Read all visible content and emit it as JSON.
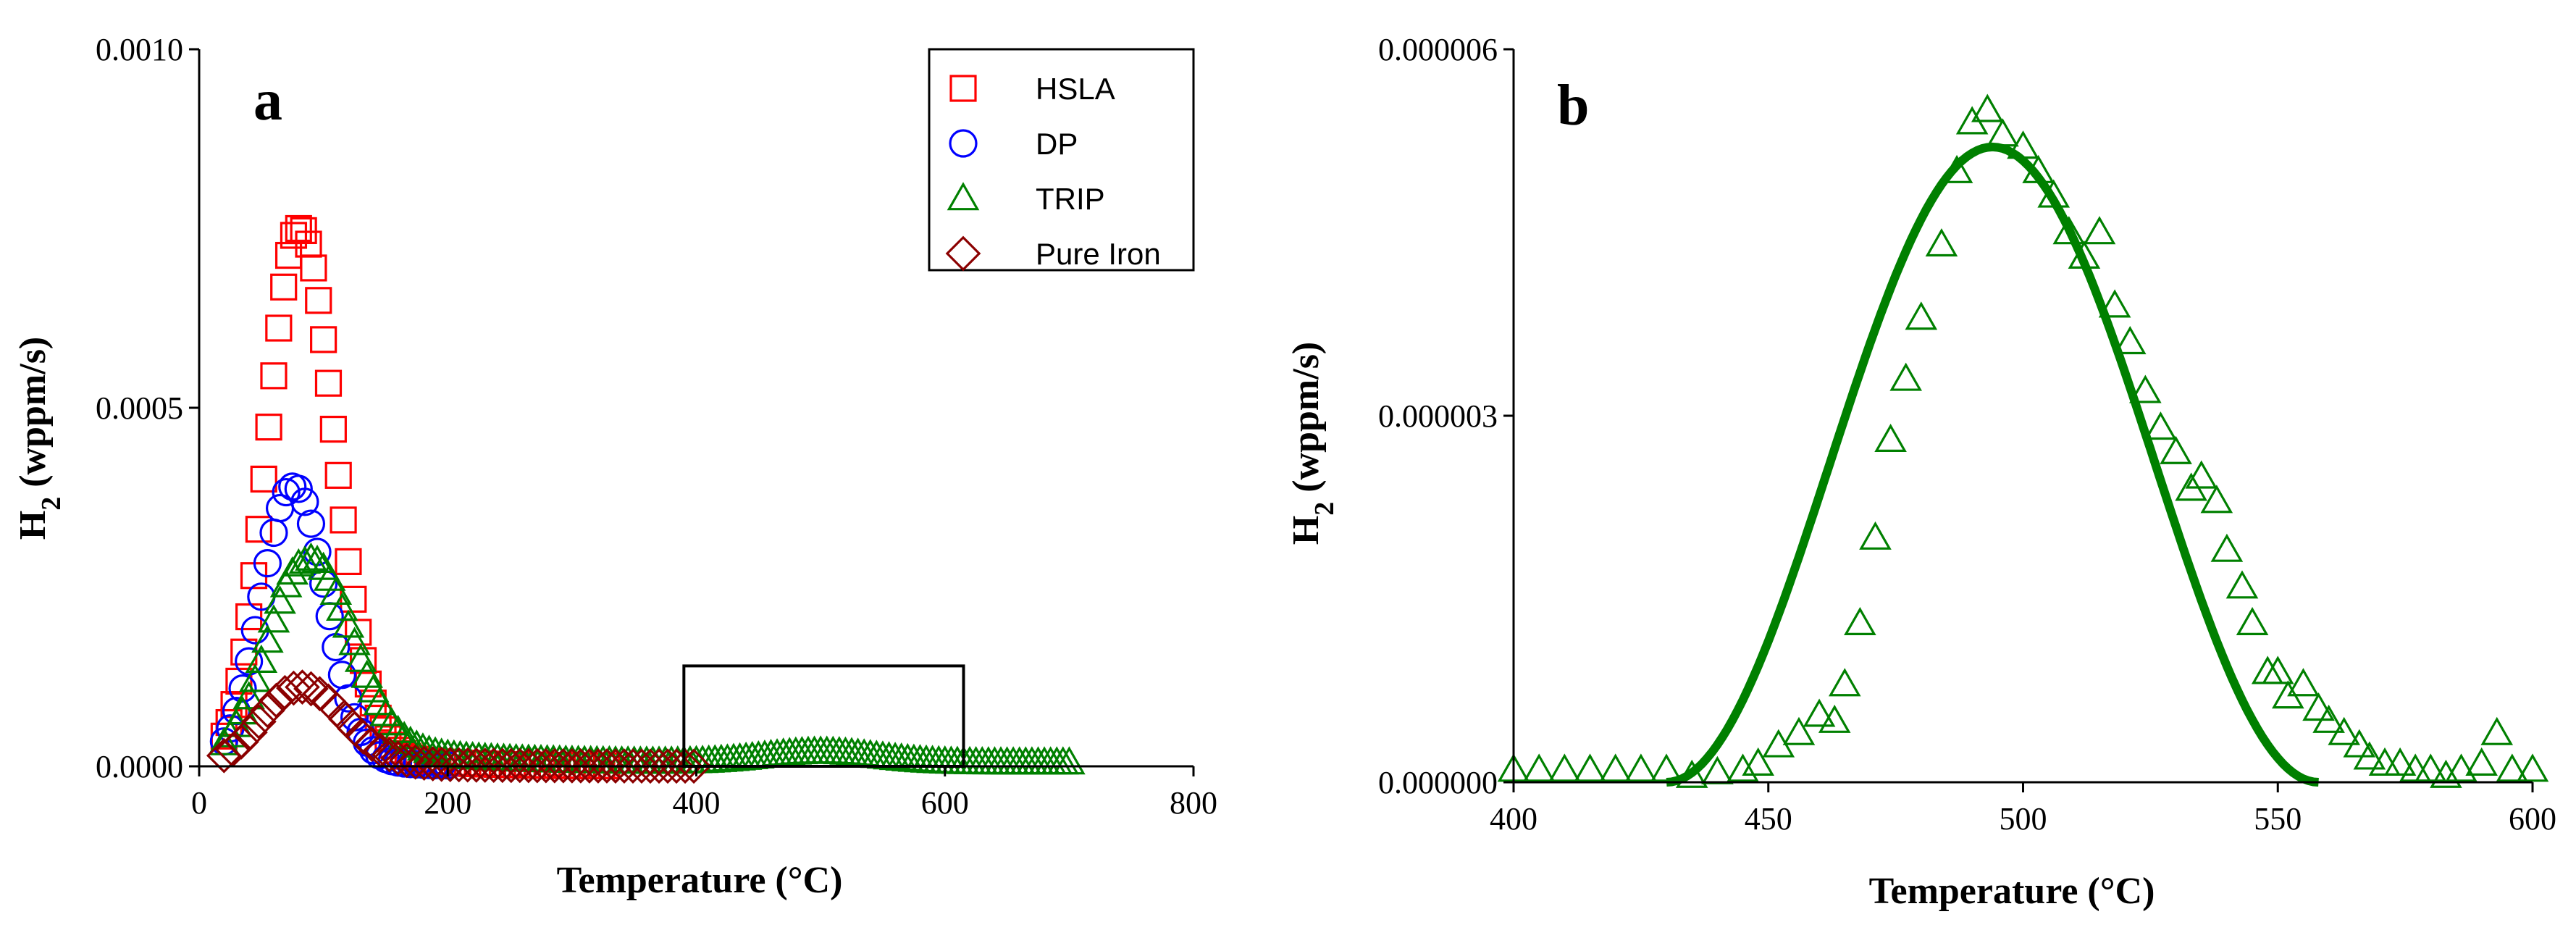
{
  "chart_data": [
    {
      "type": "scatter",
      "panel_label": "a",
      "xlabel": "Temperature (°C)",
      "ylabel_main": "H",
      "ylabel_sub": "2",
      "ylabel_rest": " (wppm/s)",
      "xlim": [
        0,
        800
      ],
      "ylim": [
        0,
        0.001
      ],
      "xticks": [
        {
          "v": 0,
          "label": "0"
        },
        {
          "v": 200,
          "label": "200"
        },
        {
          "v": 400,
          "label": "400"
        },
        {
          "v": 600,
          "label": "600"
        },
        {
          "v": 800,
          "label": "800"
        }
      ],
      "yticks": [
        {
          "v": 0,
          "label": "0.0000"
        },
        {
          "v": 0.0005,
          "label": "0.0005"
        },
        {
          "v": 0.001,
          "label": "0.0010"
        }
      ],
      "legend_position": "top-right",
      "highlight_box": {
        "x0": 390,
        "x1": 615,
        "y0": 0,
        "y1": 0.00014
      },
      "series": [
        {
          "name": "HSLA",
          "marker": "square",
          "color": "#ff0000",
          "peak_x": 80,
          "peak_y": 0.00075,
          "sigma_left": 25,
          "sigma_right": 28,
          "tail_amp": 4e-05,
          "tail_decay": 60,
          "x_start": 20,
          "x_end": 330,
          "step": 4
        },
        {
          "name": "DP",
          "marker": "circle",
          "color": "#0000ff",
          "peak_x": 75,
          "peak_y": 0.00039,
          "sigma_left": 25,
          "sigma_right": 26,
          "tail_amp": 3e-05,
          "tail_decay": 40,
          "x_start": 20,
          "x_end": 200,
          "step": 5
        },
        {
          "name": "TRIP",
          "marker": "triangle",
          "color": "#008000",
          "peak_x": 85,
          "peak_y": 0.00028,
          "sigma_left": 30,
          "sigma_right": 35,
          "tail_amp": 5e-05,
          "tail_decay": 70,
          "x_start": 20,
          "x_end": 700,
          "step": 5,
          "bump_x": 500,
          "bump_y": 1.5e-05,
          "bump_sigma": 45,
          "floor": 5e-06
        },
        {
          "name": "Pure Iron",
          "marker": "diamond",
          "color": "#8b0000",
          "peak_x": 80,
          "peak_y": 0.00011,
          "sigma_left": 30,
          "sigma_right": 35,
          "tail_amp": 1e-05,
          "tail_decay": 80,
          "x_start": 20,
          "x_end": 400,
          "step": 7
        }
      ]
    },
    {
      "type": "scatter",
      "panel_label": "b",
      "xlabel": "Temperature (°C)",
      "ylabel_main": "H",
      "ylabel_sub": "2",
      "ylabel_rest": " (wppm/s)",
      "xlim": [
        400,
        600
      ],
      "ylim": [
        0,
        6e-06
      ],
      "xticks": [
        {
          "v": 400,
          "label": "400"
        },
        {
          "v": 450,
          "label": "450"
        },
        {
          "v": 500,
          "label": "500"
        },
        {
          "v": 550,
          "label": "550"
        },
        {
          "v": 600,
          "label": "600"
        }
      ],
      "yticks": [
        {
          "v": 0,
          "label": "0.000000"
        },
        {
          "v": 3e-06,
          "label": "0.000003"
        },
        {
          "v": 6e-06,
          "label": "0.000006"
        }
      ],
      "series": [
        {
          "name": "TRIP",
          "marker": "triangle",
          "color": "#008000",
          "points": [
            [
              400,
              1e-07
            ],
            [
              405,
              1e-07
            ],
            [
              410,
              1e-07
            ],
            [
              415,
              1e-07
            ],
            [
              420,
              1e-07
            ],
            [
              425,
              1e-07
            ],
            [
              430,
              1e-07
            ],
            [
              435,
              5e-08
            ],
            [
              440,
              8e-08
            ],
            [
              445,
              1e-07
            ],
            [
              448,
              1.5e-07
            ],
            [
              452,
              3e-07
            ],
            [
              456,
              4e-07
            ],
            [
              460,
              5.5e-07
            ],
            [
              463,
              5e-07
            ],
            [
              465,
              8e-07
            ],
            [
              468,
              1.3e-06
            ],
            [
              471,
              2e-06
            ],
            [
              474,
              2.8e-06
            ],
            [
              477,
              3.3e-06
            ],
            [
              480,
              3.8e-06
            ],
            [
              484,
              4.4e-06
            ],
            [
              487,
              5e-06
            ],
            [
              490,
              5.4e-06
            ],
            [
              493,
              5.5e-06
            ],
            [
              496,
              5.3e-06
            ],
            [
              500,
              5.2e-06
            ],
            [
              503,
              5e-06
            ],
            [
              506,
              4.8e-06
            ],
            [
              509,
              4.5e-06
            ],
            [
              512,
              4.3e-06
            ],
            [
              515,
              4.5e-06
            ],
            [
              518,
              3.9e-06
            ],
            [
              521,
              3.6e-06
            ],
            [
              524,
              3.2e-06
            ],
            [
              527,
              2.9e-06
            ],
            [
              530,
              2.7e-06
            ],
            [
              533,
              2.4e-06
            ],
            [
              535,
              2.5e-06
            ],
            [
              538,
              2.3e-06
            ],
            [
              540,
              1.9e-06
            ],
            [
              543,
              1.6e-06
            ],
            [
              545,
              1.3e-06
            ],
            [
              548,
              9e-07
            ],
            [
              550,
              9e-07
            ],
            [
              552,
              7e-07
            ],
            [
              555,
              8e-07
            ],
            [
              558,
              6e-07
            ],
            [
              560,
              5e-07
            ],
            [
              563,
              4e-07
            ],
            [
              566,
              3e-07
            ],
            [
              568,
              2e-07
            ],
            [
              571,
              1.5e-07
            ],
            [
              574,
              1.5e-07
            ],
            [
              577,
              1e-07
            ],
            [
              580,
              1e-07
            ],
            [
              583,
              5e-08
            ],
            [
              586,
              1e-07
            ],
            [
              590,
              1.5e-07
            ],
            [
              593,
              4e-07
            ],
            [
              596,
              1e-07
            ],
            [
              600,
              1e-07
            ]
          ]
        },
        {
          "name": "TRIP fit",
          "marker": "line",
          "color": "#008000",
          "peak_x": 494,
          "peak_y": 5.2e-06,
          "half_width": 64
        }
      ]
    }
  ]
}
